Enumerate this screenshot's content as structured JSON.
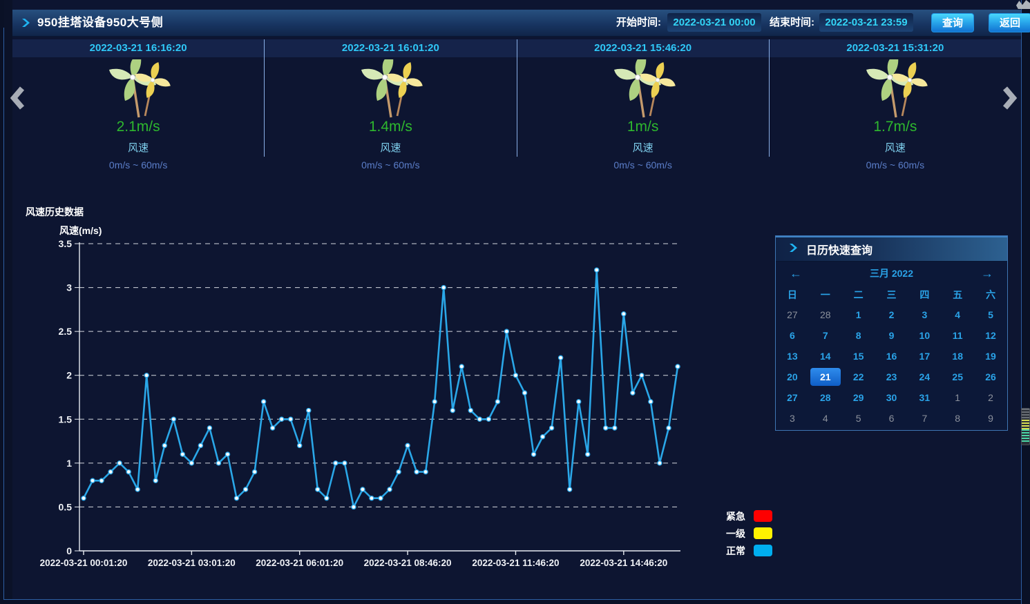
{
  "header": {
    "title": "950挂塔设备950大号侧",
    "start_label": "开始时间:",
    "start_value": "2022-03-21 00:00",
    "end_label": "结束时间:",
    "end_value": "2022-03-21 23:59",
    "query_button": "查询",
    "back_button": "返回"
  },
  "icons": {
    "title_chevron": "chevron-right-icon",
    "calendar_chevron": "chevron-right-icon",
    "carousel_prev": "chevron-left-icon",
    "carousel_next": "chevron-right-icon",
    "card_icon": "pinwheel-icon"
  },
  "carousel": {
    "cards": [
      {
        "time": "2022-03-21 16:16:20",
        "value": "2.1m/s",
        "label": "风速",
        "range": "0m/s ~ 60m/s"
      },
      {
        "time": "2022-03-21 16:01:20",
        "value": "1.4m/s",
        "label": "风速",
        "range": "0m/s ~ 60m/s"
      },
      {
        "time": "2022-03-21 15:46:20",
        "value": "1m/s",
        "label": "风速",
        "range": "0m/s ~ 60m/s"
      },
      {
        "time": "2022-03-21 15:31:20",
        "value": "1.7m/s",
        "label": "风速",
        "range": "0m/s ~ 60m/s"
      }
    ]
  },
  "section": {
    "title": "风速历史数据"
  },
  "chart_data": {
    "type": "line",
    "title": "风速历史数据",
    "ylabel": "风速(m/s)",
    "ylim": [
      0,
      3.5
    ],
    "ytick_step": 0.5,
    "grid": "horizontal-dashed",
    "legend_position": "none",
    "line_color": "#2aa7e8",
    "x_tick_labels": [
      "2022-03-21 00:01:20",
      "2022-03-21 03:01:20",
      "2022-03-21 06:01:20",
      "2022-03-21 08:46:20",
      "2022-03-21 11:46:20",
      "2022-03-21 14:46:20"
    ],
    "x_tick_indices": [
      0,
      12,
      24,
      36,
      48,
      60
    ],
    "series": [
      {
        "name": "风速",
        "values": [
          0.6,
          0.8,
          0.8,
          0.9,
          1.0,
          0.9,
          0.7,
          2.0,
          0.8,
          1.2,
          1.5,
          1.1,
          1.0,
          1.2,
          1.4,
          1.0,
          1.1,
          0.6,
          0.7,
          0.9,
          1.7,
          1.4,
          1.5,
          1.5,
          1.2,
          1.6,
          0.7,
          0.6,
          1.0,
          1.0,
          0.5,
          0.7,
          0.6,
          0.6,
          0.7,
          0.9,
          1.2,
          0.9,
          0.9,
          1.7,
          3.0,
          1.6,
          2.1,
          1.6,
          1.5,
          1.5,
          1.7,
          2.5,
          2.0,
          1.8,
          1.1,
          1.3,
          1.4,
          2.2,
          0.7,
          1.7,
          1.1,
          3.2,
          1.4,
          1.4,
          2.7,
          1.8,
          2.0,
          1.7,
          1.0,
          1.4,
          2.1
        ]
      }
    ]
  },
  "legend": {
    "items": [
      {
        "label": "紧急",
        "color": "#fe0000"
      },
      {
        "label": "一级",
        "color": "#fff200"
      },
      {
        "label": "正常",
        "color": "#00aeef"
      }
    ]
  },
  "calendar": {
    "title": "日历快速查询",
    "month": "三月 2022",
    "prev": "←",
    "next": "→",
    "weekdays": [
      "日",
      "一",
      "二",
      "三",
      "四",
      "五",
      "六"
    ],
    "weeks": [
      [
        {
          "d": 27,
          "o": 1
        },
        {
          "d": 28,
          "o": 1
        },
        {
          "d": 1
        },
        {
          "d": 2
        },
        {
          "d": 3
        },
        {
          "d": 4
        },
        {
          "d": 5
        }
      ],
      [
        {
          "d": 6
        },
        {
          "d": 7
        },
        {
          "d": 8
        },
        {
          "d": 9
        },
        {
          "d": 10
        },
        {
          "d": 11
        },
        {
          "d": 12
        }
      ],
      [
        {
          "d": 13
        },
        {
          "d": 14
        },
        {
          "d": 15
        },
        {
          "d": 16
        },
        {
          "d": 17
        },
        {
          "d": 18
        },
        {
          "d": 19
        }
      ],
      [
        {
          "d": 20
        },
        {
          "d": 21,
          "sel": 1
        },
        {
          "d": 22
        },
        {
          "d": 23
        },
        {
          "d": 24
        },
        {
          "d": 25
        },
        {
          "d": 26
        }
      ],
      [
        {
          "d": 27
        },
        {
          "d": 28
        },
        {
          "d": 29
        },
        {
          "d": 30
        },
        {
          "d": 31
        },
        {
          "d": 1,
          "o": 1
        },
        {
          "d": 2,
          "o": 1
        }
      ],
      [
        {
          "d": 3,
          "o": 1
        },
        {
          "d": 4,
          "o": 1
        },
        {
          "d": 5,
          "o": 1
        },
        {
          "d": 6,
          "o": 1
        },
        {
          "d": 7,
          "o": 1
        },
        {
          "d": 8,
          "o": 1
        },
        {
          "d": 9,
          "o": 1
        }
      ]
    ],
    "selected_day": 21,
    "selected_color": "#1a6fd4"
  },
  "colors": {
    "page_bg": "#0d1531",
    "header_accent": "#27507f",
    "cyan_text": "#2fc8f8",
    "value_green": "#2eb82e",
    "range_blue": "#5b7ec9",
    "divider": "#8ab0e8",
    "calendar_cyan": "#2aa3e8"
  }
}
